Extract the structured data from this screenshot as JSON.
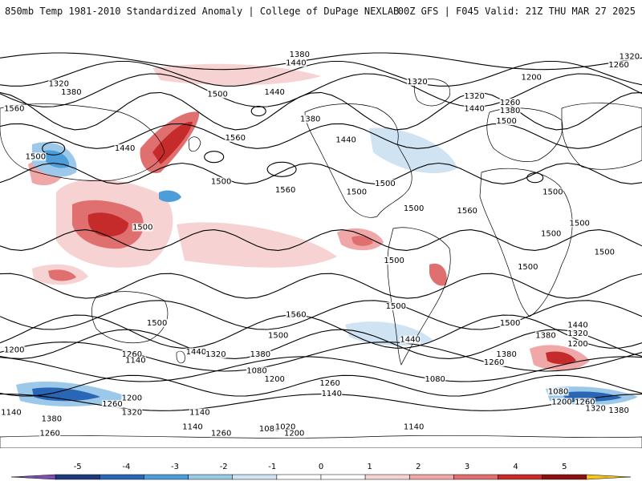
{
  "header": {
    "title": "850mb Temp 1981-2010 Standardized Anomaly | College of DuPage NEXLAB",
    "run_info": "00Z GFS | F045 Valid: 21Z THU MAR 27 2025"
  },
  "colors": {
    "land_outline": "#000000",
    "contour": "#000000",
    "background": "#ffffff"
  },
  "colorbar": {
    "ticks": [
      "-5",
      "-4",
      "-3",
      "-2",
      "-1",
      "0",
      "1",
      "2",
      "3",
      "4",
      "5"
    ],
    "bins": [
      "#7e4fb0",
      "#1b3b7a",
      "#2a66b6",
      "#4d9ed8",
      "#9cc9ea",
      "#cfe3f3",
      "#ffffff",
      "#ffffff",
      "#f6d2d2",
      "#f0a7a7",
      "#e07070",
      "#c52b2b",
      "#8a1010",
      "#f5c519"
    ]
  },
  "height_labels": [
    {
      "text": "1380",
      "lon": -12,
      "lat": 78
    },
    {
      "text": "1440",
      "lon": -14,
      "lat": 74
    },
    {
      "text": "1320",
      "lon": 173,
      "lat": 77
    },
    {
      "text": "1260",
      "lon": 167,
      "lat": 73
    },
    {
      "text": "1200",
      "lon": 118,
      "lat": 67
    },
    {
      "text": "1320",
      "lon": -147,
      "lat": 64
    },
    {
      "text": "1380",
      "lon": -140,
      "lat": 60
    },
    {
      "text": "1320",
      "lon": 54,
      "lat": 65
    },
    {
      "text": "1440",
      "lon": -26,
      "lat": 60
    },
    {
      "text": "1320",
      "lon": 86,
      "lat": 58
    },
    {
      "text": "1260",
      "lon": 106,
      "lat": 55
    },
    {
      "text": "1440",
      "lon": 86,
      "lat": 52
    },
    {
      "text": "1380",
      "lon": 106,
      "lat": 51
    },
    {
      "text": "1500",
      "lon": 104,
      "lat": 46
    },
    {
      "text": "1560",
      "lon": -172,
      "lat": 52
    },
    {
      "text": "1500",
      "lon": -58,
      "lat": 59
    },
    {
      "text": "1380",
      "lon": -6,
      "lat": 47
    },
    {
      "text": "1440",
      "lon": 14,
      "lat": 37
    },
    {
      "text": "1560",
      "lon": -48,
      "lat": 38
    },
    {
      "text": "1440",
      "lon": -110,
      "lat": 33
    },
    {
      "text": "1500",
      "lon": -160,
      "lat": 29
    },
    {
      "text": "1500",
      "lon": -56,
      "lat": 17
    },
    {
      "text": "1500",
      "lon": 20,
      "lat": 12
    },
    {
      "text": "1560",
      "lon": -20,
      "lat": 13
    },
    {
      "text": "1560",
      "lon": 82,
      "lat": 3
    },
    {
      "text": "1500",
      "lon": 52,
      "lat": 4
    },
    {
      "text": "1500",
      "lon": 36,
      "lat": 16
    },
    {
      "text": "1500",
      "lon": 130,
      "lat": 12
    },
    {
      "text": "1500",
      "lon": 145,
      "lat": -3
    },
    {
      "text": "1500",
      "lon": -100,
      "lat": -5
    },
    {
      "text": "1500",
      "lon": 41,
      "lat": -21
    },
    {
      "text": "1500",
      "lon": 116,
      "lat": -24
    },
    {
      "text": "1500",
      "lon": 129,
      "lat": -8
    },
    {
      "text": "1500",
      "lon": 159,
      "lat": -17
    },
    {
      "text": "1500",
      "lon": -92,
      "lat": -51
    },
    {
      "text": "1500",
      "lon": 42,
      "lat": -43
    },
    {
      "text": "1500",
      "lon": 106,
      "lat": -51
    },
    {
      "text": "1560",
      "lon": -14,
      "lat": -47
    },
    {
      "text": "1500",
      "lon": -24,
      "lat": -57
    },
    {
      "text": "1440",
      "lon": 50,
      "lat": -59
    },
    {
      "text": "1380",
      "lon": 126,
      "lat": -57
    },
    {
      "text": "1440",
      "lon": 144,
      "lat": -52
    },
    {
      "text": "1320",
      "lon": 144,
      "lat": -56
    },
    {
      "text": "1200",
      "lon": 144,
      "lat": -61
    },
    {
      "text": "1200",
      "lon": -172,
      "lat": -64
    },
    {
      "text": "1260",
      "lon": -106,
      "lat": -66
    },
    {
      "text": "1440",
      "lon": -70,
      "lat": -65
    },
    {
      "text": "1320",
      "lon": -59,
      "lat": -66
    },
    {
      "text": "1380",
      "lon": -34,
      "lat": -66
    },
    {
      "text": "1140",
      "lon": -104,
      "lat": -69
    },
    {
      "text": "1080",
      "lon": -36,
      "lat": -74
    },
    {
      "text": "1200",
      "lon": -26,
      "lat": -78
    },
    {
      "text": "1260",
      "lon": 5,
      "lat": -80
    },
    {
      "text": "1140",
      "lon": 6,
      "lat": -85
    },
    {
      "text": "1080",
      "lon": 64,
      "lat": -78
    },
    {
      "text": "1260",
      "lon": 97,
      "lat": -70
    },
    {
      "text": "1380",
      "lon": 104,
      "lat": -66
    },
    {
      "text": "1080",
      "lon": 133,
      "lat": -84
    },
    {
      "text": "1200",
      "lon": 135,
      "lat": -89
    },
    {
      "text": "1260",
      "lon": 148,
      "lat": -89
    },
    {
      "text": "1320",
      "lon": 154,
      "lat": -92
    },
    {
      "text": "1380",
      "lon": 167,
      "lat": -93
    },
    {
      "text": "1140",
      "lon": -176,
      "lat": -94
    },
    {
      "text": "1380",
      "lon": -151,
      "lat": -97
    },
    {
      "text": "1260",
      "lon": -117,
      "lat": -90
    },
    {
      "text": "1200",
      "lon": -106,
      "lat": -87
    },
    {
      "text": "1320",
      "lon": -106,
      "lat": -94
    },
    {
      "text": "1140",
      "lon": -68,
      "lat": -94
    },
    {
      "text": "1140",
      "lon": 52,
      "lat": -101
    },
    {
      "text": "1140",
      "lon": -72,
      "lat": -101
    },
    {
      "text": "1260",
      "lon": -56,
      "lat": -104
    },
    {
      "text": "1080",
      "lon": -29,
      "lat": -102
    },
    {
      "text": "1020",
      "lon": -20,
      "lat": -101
    },
    {
      "text": "1200",
      "lon": -15,
      "lat": -104
    },
    {
      "text": "1260",
      "lon": -152,
      "lat": -104
    }
  ]
}
